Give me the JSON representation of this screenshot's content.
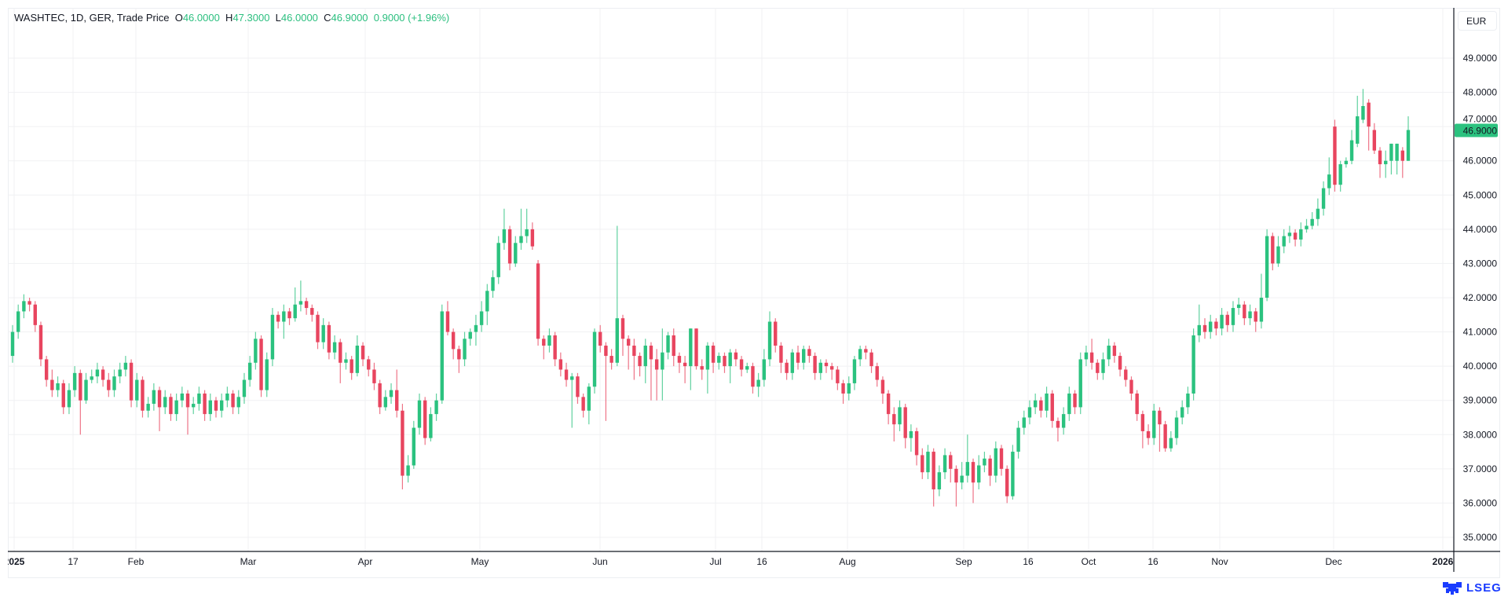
{
  "header": {
    "symbol": "WASHTEC, 1D, GER, Trade Price",
    "o_label": "O",
    "o_value": "46.0000",
    "h_label": "H",
    "h_value": "47.3000",
    "l_label": "L",
    "l_value": "46.0000",
    "c_label": "C",
    "c_value": "46.9000",
    "change": "0.9000 (+1.96%)"
  },
  "currency": "EUR",
  "last_price": "46.9000",
  "logo": "LSEG",
  "colors": {
    "up": "#2bc27f",
    "down": "#e8455f",
    "grid": "#f0f1f3",
    "last_price_bg": "#2bc27f"
  },
  "chart_data": {
    "type": "candlestick",
    "title": "WASHTEC, 1D, GER, Trade Price",
    "ylabel": "EUR",
    "ylim": [
      34.6,
      49.8
    ],
    "yticks": [
      "35.0000",
      "36.0000",
      "37.0000",
      "38.0000",
      "39.0000",
      "40.0000",
      "41.0000",
      "42.0000",
      "43.0000",
      "44.0000",
      "45.0000",
      "46.0000",
      "47.0000",
      "48.0000",
      "49.0000"
    ],
    "xticks": [
      {
        "label": "2025",
        "bold": true
      },
      {
        "label": "17"
      },
      {
        "label": "Feb"
      },
      {
        "label": "Mar"
      },
      {
        "label": "Apr"
      },
      {
        "label": "May"
      },
      {
        "label": "Jun"
      },
      {
        "label": "Jul"
      },
      {
        "label": "16"
      },
      {
        "label": "Aug"
      },
      {
        "label": "Sep"
      },
      {
        "label": "16"
      },
      {
        "label": "Oct"
      },
      {
        "label": "16"
      },
      {
        "label": "Nov"
      },
      {
        "label": "Dec"
      },
      {
        "label": "2026",
        "bold": true
      }
    ],
    "grid": true,
    "ohlc_format": [
      "open",
      "high",
      "low",
      "close"
    ],
    "ohlc": [
      [
        40.3,
        41.2,
        40.1,
        41.0
      ],
      [
        41.0,
        41.8,
        40.8,
        41.6
      ],
      [
        41.6,
        42.1,
        41.4,
        41.9
      ],
      [
        41.9,
        42.0,
        41.6,
        41.8
      ],
      [
        41.8,
        41.9,
        41.0,
        41.2
      ],
      [
        41.2,
        41.3,
        40.0,
        40.2
      ],
      [
        40.2,
        40.3,
        39.4,
        39.6
      ],
      [
        39.6,
        39.9,
        39.1,
        39.3
      ],
      [
        39.3,
        39.7,
        39.1,
        39.5
      ],
      [
        39.5,
        39.6,
        38.6,
        38.8
      ],
      [
        38.8,
        39.5,
        38.6,
        39.3
      ],
      [
        39.3,
        40.0,
        39.1,
        39.8
      ],
      [
        39.8,
        39.9,
        38.0,
        39.0
      ],
      [
        39.0,
        39.8,
        38.9,
        39.6
      ],
      [
        39.6,
        39.9,
        39.5,
        39.7
      ],
      [
        39.7,
        40.1,
        39.5,
        39.9
      ],
      [
        39.9,
        40.0,
        39.4,
        39.6
      ],
      [
        39.6,
        39.8,
        39.1,
        39.3
      ],
      [
        39.3,
        39.9,
        39.1,
        39.7
      ],
      [
        39.7,
        40.1,
        39.5,
        39.9
      ],
      [
        39.9,
        40.3,
        39.7,
        40.1
      ],
      [
        40.1,
        40.2,
        38.8,
        39.0
      ],
      [
        39.0,
        39.8,
        38.8,
        39.6
      ],
      [
        39.6,
        39.7,
        38.5,
        38.7
      ],
      [
        38.7,
        39.1,
        38.5,
        38.9
      ],
      [
        38.9,
        39.5,
        38.7,
        39.3
      ],
      [
        39.3,
        39.4,
        38.1,
        38.8
      ],
      [
        38.8,
        39.3,
        38.6,
        39.1
      ],
      [
        39.1,
        39.2,
        38.4,
        38.6
      ],
      [
        38.6,
        39.2,
        38.4,
        39.0
      ],
      [
        39.0,
        39.4,
        38.8,
        39.2
      ],
      [
        39.2,
        39.3,
        38.0,
        38.8
      ],
      [
        38.8,
        39.1,
        38.6,
        38.9
      ],
      [
        38.9,
        39.4,
        38.7,
        39.2
      ],
      [
        39.2,
        39.3,
        38.4,
        38.6
      ],
      [
        38.6,
        39.2,
        38.4,
        39.0
      ],
      [
        39.0,
        39.1,
        38.5,
        38.7
      ],
      [
        38.7,
        39.2,
        38.5,
        39.0
      ],
      [
        39.0,
        39.4,
        38.8,
        39.2
      ],
      [
        39.2,
        39.3,
        38.6,
        38.8
      ],
      [
        38.8,
        39.3,
        38.6,
        39.1
      ],
      [
        39.1,
        39.8,
        38.9,
        39.6
      ],
      [
        39.6,
        40.3,
        39.4,
        40.1
      ],
      [
        40.1,
        41.0,
        39.9,
        40.8
      ],
      [
        40.8,
        40.9,
        39.1,
        39.3
      ],
      [
        39.3,
        40.4,
        39.1,
        40.2
      ],
      [
        40.2,
        41.7,
        40.0,
        41.5
      ],
      [
        41.5,
        41.6,
        41.1,
        41.3
      ],
      [
        41.3,
        41.8,
        40.8,
        41.6
      ],
      [
        41.6,
        41.7,
        41.2,
        41.4
      ],
      [
        41.4,
        42.3,
        41.3,
        41.8
      ],
      [
        41.8,
        42.5,
        41.6,
        41.9
      ],
      [
        41.9,
        42.0,
        41.5,
        41.7
      ],
      [
        41.7,
        41.8,
        41.3,
        41.5
      ],
      [
        41.5,
        41.6,
        40.5,
        40.7
      ],
      [
        40.7,
        41.4,
        40.5,
        41.2
      ],
      [
        41.2,
        41.3,
        40.2,
        40.4
      ],
      [
        40.4,
        40.9,
        40.2,
        40.7
      ],
      [
        40.7,
        40.8,
        39.5,
        40.1
      ],
      [
        40.1,
        40.4,
        39.9,
        40.2
      ],
      [
        40.2,
        40.3,
        39.6,
        39.8
      ],
      [
        39.8,
        40.9,
        39.7,
        40.6
      ],
      [
        40.6,
        40.7,
        40.0,
        40.2
      ],
      [
        40.2,
        40.3,
        39.7,
        39.9
      ],
      [
        39.9,
        40.1,
        39.3,
        39.5
      ],
      [
        39.5,
        39.6,
        38.6,
        38.8
      ],
      [
        38.8,
        39.3,
        38.7,
        39.1
      ],
      [
        39.1,
        39.5,
        38.9,
        39.3
      ],
      [
        39.3,
        39.9,
        38.5,
        38.7
      ],
      [
        38.7,
        38.9,
        36.4,
        36.8
      ],
      [
        36.8,
        37.4,
        36.6,
        37.1
      ],
      [
        37.1,
        38.4,
        37.0,
        38.2
      ],
      [
        38.2,
        39.2,
        38.0,
        39.0
      ],
      [
        39.0,
        39.1,
        37.7,
        37.9
      ],
      [
        37.9,
        38.8,
        37.8,
        38.6
      ],
      [
        38.6,
        39.2,
        38.4,
        39.0
      ],
      [
        39.0,
        41.8,
        38.9,
        41.6
      ],
      [
        41.6,
        41.9,
        40.9,
        41.0
      ],
      [
        41.0,
        41.1,
        40.2,
        40.5
      ],
      [
        40.5,
        40.6,
        39.8,
        40.2
      ],
      [
        40.2,
        41.0,
        40.0,
        40.8
      ],
      [
        40.8,
        41.1,
        40.6,
        41.0
      ],
      [
        41.0,
        41.5,
        40.6,
        41.2
      ],
      [
        41.2,
        41.9,
        41.0,
        41.6
      ],
      [
        41.6,
        42.4,
        41.2,
        42.2
      ],
      [
        42.2,
        42.8,
        42.0,
        42.6
      ],
      [
        42.6,
        43.8,
        42.4,
        43.6
      ],
      [
        43.6,
        44.6,
        43.4,
        44.0
      ],
      [
        44.0,
        44.1,
        42.8,
        43.0
      ],
      [
        43.0,
        43.8,
        42.9,
        43.6
      ],
      [
        43.6,
        44.6,
        43.4,
        43.8
      ],
      [
        43.8,
        44.6,
        43.6,
        44.0
      ],
      [
        44.0,
        44.2,
        43.4,
        43.5
      ],
      [
        43.0,
        43.1,
        40.6,
        40.8
      ],
      [
        40.8,
        40.9,
        40.2,
        40.6
      ],
      [
        40.6,
        41.1,
        40.4,
        40.9
      ],
      [
        40.9,
        41.0,
        40.0,
        40.2
      ],
      [
        40.2,
        40.4,
        39.7,
        39.9
      ],
      [
        39.9,
        40.1,
        39.4,
        39.6
      ],
      [
        39.6,
        39.8,
        38.2,
        39.7
      ],
      [
        39.7,
        39.8,
        38.9,
        39.1
      ],
      [
        39.1,
        39.2,
        38.5,
        38.7
      ],
      [
        38.7,
        39.5,
        38.3,
        39.4
      ],
      [
        39.4,
        41.1,
        39.2,
        41.0
      ],
      [
        41.0,
        41.2,
        40.4,
        40.6
      ],
      [
        40.6,
        40.7,
        38.4,
        40.3
      ],
      [
        40.3,
        40.5,
        39.9,
        40.1
      ],
      [
        40.1,
        44.1,
        40.0,
        41.4
      ],
      [
        41.4,
        41.5,
        40.3,
        40.8
      ],
      [
        40.8,
        40.9,
        39.9,
        40.6
      ],
      [
        40.6,
        40.8,
        39.6,
        40.3
      ],
      [
        40.3,
        40.4,
        39.7,
        40.0
      ],
      [
        40.0,
        40.8,
        39.5,
        40.6
      ],
      [
        40.6,
        40.7,
        39.0,
        40.2
      ],
      [
        40.2,
        40.5,
        39.0,
        39.9
      ],
      [
        39.9,
        41.1,
        39.0,
        40.4
      ],
      [
        40.4,
        41.0,
        40.2,
        40.9
      ],
      [
        40.9,
        41.1,
        40.0,
        40.3
      ],
      [
        40.3,
        40.4,
        39.8,
        40.1
      ],
      [
        40.1,
        40.3,
        39.5,
        40.0
      ],
      [
        40.0,
        41.1,
        39.3,
        41.1
      ],
      [
        41.1,
        41.1,
        39.9,
        40.0
      ],
      [
        40.0,
        40.2,
        39.6,
        39.9
      ],
      [
        39.9,
        40.7,
        39.2,
        40.6
      ],
      [
        40.6,
        40.7,
        39.8,
        40.1
      ],
      [
        40.1,
        40.4,
        39.9,
        40.3
      ],
      [
        40.3,
        40.4,
        39.8,
        40.0
      ],
      [
        40.0,
        40.5,
        39.5,
        40.4
      ],
      [
        40.4,
        40.5,
        40.0,
        40.2
      ],
      [
        40.2,
        40.3,
        39.7,
        39.9
      ],
      [
        39.9,
        40.1,
        39.8,
        40.0
      ],
      [
        40.0,
        40.1,
        39.2,
        39.4
      ],
      [
        39.4,
        39.8,
        39.1,
        39.6
      ],
      [
        39.6,
        40.5,
        39.4,
        40.2
      ],
      [
        40.2,
        41.6,
        40.0,
        41.3
      ],
      [
        41.3,
        41.4,
        40.4,
        40.6
      ],
      [
        40.6,
        40.7,
        39.8,
        40.1
      ],
      [
        40.1,
        40.2,
        39.6,
        39.8
      ],
      [
        39.8,
        40.5,
        39.6,
        40.4
      ],
      [
        40.4,
        40.6,
        39.9,
        40.1
      ],
      [
        40.1,
        40.6,
        39.9,
        40.5
      ],
      [
        40.5,
        40.6,
        40.1,
        40.3
      ],
      [
        40.3,
        40.4,
        39.6,
        39.8
      ],
      [
        39.8,
        40.2,
        39.6,
        40.1
      ],
      [
        40.1,
        40.2,
        39.8,
        40.0
      ],
      [
        40.0,
        40.1,
        39.6,
        39.9
      ],
      [
        39.9,
        40.0,
        39.3,
        39.5
      ],
      [
        39.5,
        39.6,
        38.9,
        39.2
      ],
      [
        39.2,
        39.7,
        39.0,
        39.5
      ],
      [
        39.5,
        40.3,
        39.3,
        40.2
      ],
      [
        40.2,
        40.6,
        40.0,
        40.5
      ],
      [
        40.5,
        40.6,
        40.2,
        40.4
      ],
      [
        40.4,
        40.5,
        39.8,
        40.0
      ],
      [
        40.0,
        40.1,
        39.4,
        39.6
      ],
      [
        39.6,
        39.7,
        38.9,
        39.2
      ],
      [
        39.2,
        39.3,
        38.3,
        38.6
      ],
      [
        38.6,
        38.8,
        37.8,
        38.3
      ],
      [
        38.3,
        39.0,
        38.1,
        38.8
      ],
      [
        38.8,
        38.9,
        37.6,
        37.9
      ],
      [
        37.9,
        38.3,
        37.5,
        38.1
      ],
      [
        38.1,
        38.2,
        37.1,
        37.4
      ],
      [
        37.4,
        37.6,
        36.7,
        36.9
      ],
      [
        36.9,
        37.7,
        36.7,
        37.5
      ],
      [
        37.5,
        37.6,
        35.9,
        36.4
      ],
      [
        36.4,
        37.1,
        36.2,
        36.9
      ],
      [
        36.9,
        37.6,
        36.7,
        37.4
      ],
      [
        37.4,
        37.5,
        36.6,
        37.0
      ],
      [
        37.0,
        37.1,
        35.9,
        36.6
      ],
      [
        36.6,
        37.2,
        36.4,
        36.8
      ],
      [
        36.8,
        38.0,
        36.6,
        37.2
      ],
      [
        37.2,
        37.3,
        36.0,
        36.6
      ],
      [
        36.6,
        37.4,
        36.4,
        37.1
      ],
      [
        37.1,
        37.5,
        36.9,
        37.3
      ],
      [
        37.3,
        37.4,
        36.5,
        36.8
      ],
      [
        36.8,
        37.8,
        36.6,
        37.6
      ],
      [
        37.6,
        37.7,
        36.8,
        37.0
      ],
      [
        37.0,
        37.1,
        36.0,
        36.2
      ],
      [
        36.2,
        37.7,
        36.1,
        37.5
      ],
      [
        37.5,
        38.4,
        37.3,
        38.2
      ],
      [
        38.2,
        38.7,
        38.0,
        38.5
      ],
      [
        38.5,
        39.0,
        38.3,
        38.8
      ],
      [
        38.8,
        39.2,
        38.6,
        39.0
      ],
      [
        39.0,
        39.1,
        38.5,
        38.7
      ],
      [
        38.7,
        39.4,
        38.5,
        39.2
      ],
      [
        39.2,
        39.3,
        38.2,
        38.4
      ],
      [
        38.4,
        38.5,
        37.8,
        38.2
      ],
      [
        38.2,
        38.8,
        38.0,
        38.6
      ],
      [
        38.6,
        39.4,
        38.4,
        39.2
      ],
      [
        39.2,
        39.3,
        38.6,
        38.8
      ],
      [
        38.8,
        40.4,
        38.6,
        40.2
      ],
      [
        40.2,
        40.6,
        40.0,
        40.4
      ],
      [
        40.4,
        40.8,
        39.9,
        40.1
      ],
      [
        40.1,
        40.2,
        39.6,
        39.8
      ],
      [
        39.8,
        40.4,
        39.6,
        40.2
      ],
      [
        40.2,
        40.8,
        40.0,
        40.6
      ],
      [
        40.6,
        40.7,
        40.1,
        40.3
      ],
      [
        40.3,
        40.4,
        39.7,
        39.9
      ],
      [
        39.9,
        40.0,
        39.4,
        39.6
      ],
      [
        39.6,
        39.7,
        39.0,
        39.2
      ],
      [
        39.2,
        39.3,
        38.4,
        38.6
      ],
      [
        38.6,
        38.7,
        37.6,
        38.1
      ],
      [
        38.1,
        38.3,
        37.7,
        37.9
      ],
      [
        37.9,
        38.9,
        37.7,
        38.7
      ],
      [
        38.7,
        38.8,
        37.5,
        38.3
      ],
      [
        38.3,
        38.4,
        37.5,
        37.6
      ],
      [
        37.6,
        38.1,
        37.5,
        37.9
      ],
      [
        37.9,
        38.7,
        37.7,
        38.5
      ],
      [
        38.5,
        39.0,
        38.3,
        38.8
      ],
      [
        38.8,
        39.4,
        38.6,
        39.2
      ],
      [
        39.2,
        41.1,
        39.0,
        40.9
      ],
      [
        40.9,
        41.8,
        40.7,
        41.2
      ],
      [
        41.2,
        41.4,
        40.8,
        41.0
      ],
      [
        41.0,
        41.5,
        40.8,
        41.3
      ],
      [
        41.3,
        41.4,
        40.9,
        41.1
      ],
      [
        41.1,
        41.7,
        40.9,
        41.5
      ],
      [
        41.5,
        41.6,
        41.0,
        41.2
      ],
      [
        41.2,
        41.9,
        41.0,
        41.7
      ],
      [
        41.7,
        42.0,
        41.5,
        41.8
      ],
      [
        41.8,
        41.9,
        41.2,
        41.4
      ],
      [
        41.4,
        41.8,
        41.2,
        41.6
      ],
      [
        41.6,
        41.7,
        41.0,
        41.3
      ],
      [
        41.3,
        42.7,
        41.1,
        42.0
      ],
      [
        42.0,
        44.0,
        41.9,
        43.8
      ],
      [
        43.8,
        43.9,
        42.8,
        43.0
      ],
      [
        43.0,
        43.8,
        42.9,
        43.5
      ],
      [
        43.5,
        44.0,
        43.3,
        43.8
      ],
      [
        43.8,
        44.1,
        43.6,
        43.9
      ],
      [
        43.9,
        44.0,
        43.5,
        43.7
      ],
      [
        43.7,
        44.2,
        43.5,
        44.0
      ],
      [
        44.0,
        44.3,
        43.9,
        44.1
      ],
      [
        44.1,
        44.5,
        44.0,
        44.3
      ],
      [
        44.3,
        44.9,
        44.1,
        44.6
      ],
      [
        44.6,
        45.4,
        44.4,
        45.2
      ],
      [
        45.2,
        46.1,
        45.0,
        45.6
      ],
      [
        47.0,
        47.2,
        45.1,
        45.3
      ],
      [
        45.3,
        46.0,
        45.1,
        45.9
      ],
      [
        45.9,
        46.1,
        45.8,
        46.0
      ],
      [
        46.0,
        46.9,
        45.9,
        46.6
      ],
      [
        46.5,
        47.9,
        46.4,
        47.3
      ],
      [
        47.2,
        48.1,
        47.1,
        47.6
      ],
      [
        47.7,
        47.8,
        46.3,
        47.0
      ],
      [
        46.9,
        47.1,
        46.2,
        46.3
      ],
      [
        46.3,
        46.4,
        45.5,
        45.9
      ],
      [
        45.9,
        46.3,
        45.5,
        46.0
      ],
      [
        46.0,
        46.5,
        45.6,
        46.5
      ],
      [
        46.0,
        46.5,
        45.6,
        46.5
      ],
      [
        46.3,
        46.4,
        45.5,
        46.0
      ],
      [
        46.0,
        47.3,
        46.0,
        46.9
      ]
    ]
  }
}
